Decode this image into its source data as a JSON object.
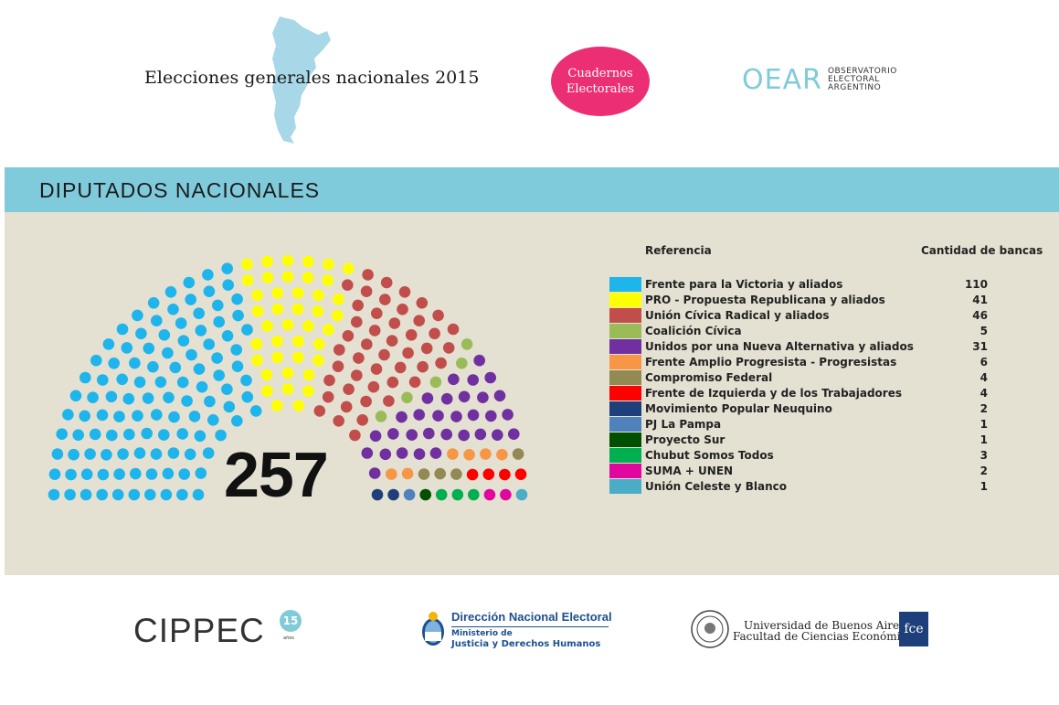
{
  "header": {
    "title": "Elecciones generales nacionales 2015",
    "badge_line1": "Cuadernos",
    "badge_line2": "Electorales",
    "oear_mark": "OEAR",
    "oear_line1": "OBSERVATORIO",
    "oear_line2": "ELECTORAL",
    "oear_line3": "ARGENTINO",
    "map_color": "#a8d8e8",
    "badge_color": "#ec2f74"
  },
  "section": {
    "title": "DIPUTADOS NACIONALES",
    "band_color": "#7fcbdc",
    "panel_color": "#e4e1d2"
  },
  "chart_data": {
    "type": "parliament",
    "total": 257,
    "total_label": "257",
    "legend_header_left": "Referencia",
    "legend_header_right": "Cantidad de bancas",
    "parties": [
      {
        "name": "Frente para la Victoria y aliados",
        "seats": 110,
        "color": "#1eb4ec"
      },
      {
        "name": "PRO - Propuesta Republicana y aliados",
        "seats": 41,
        "color": "#ffff00"
      },
      {
        "name": "Unión Cívica Radical y aliados",
        "seats": 46,
        "color": "#c14e4b"
      },
      {
        "name": "Coalición Cívica",
        "seats": 5,
        "color": "#9bbb59"
      },
      {
        "name": "Unidos por una Nueva Alternativa y aliados",
        "seats": 31,
        "color": "#7030a0"
      },
      {
        "name": "Frente Amplio Progresista - Progresistas",
        "seats": 6,
        "color": "#f79646"
      },
      {
        "name": "Compromiso Federal",
        "seats": 4,
        "color": "#938953"
      },
      {
        "name": "Frente de Izquierda y de los Trabajadores",
        "seats": 4,
        "color": "#ff0000"
      },
      {
        "name": "Movimiento Popular Neuquino",
        "seats": 2,
        "color": "#1f3f7a"
      },
      {
        "name": "PJ La Pampa",
        "seats": 1,
        "color": "#4f81bd"
      },
      {
        "name": "Proyecto Sur",
        "seats": 1,
        "color": "#005000"
      },
      {
        "name": "Chubut Somos Todos",
        "seats": 3,
        "color": "#00b050"
      },
      {
        "name": "SUMA + UNEN",
        "seats": 2,
        "color": "#e0079f"
      },
      {
        "name": "Unión Celeste y Blanco",
        "seats": 1,
        "color": "#4bacc6"
      }
    ]
  },
  "footer": {
    "cippec": "CIPPEC",
    "cippec_badge": "15",
    "cippec_sub": "años",
    "dne_title": "Dirección Nacional Electoral",
    "dne_sub1": "Ministerio de",
    "dne_sub2": "Justicia y Derechos Humanos",
    "uba_line1": "Universidad de Buenos Aires",
    "uba_line2": "Facultad de Ciencias Económicas",
    "fce": "fce"
  }
}
